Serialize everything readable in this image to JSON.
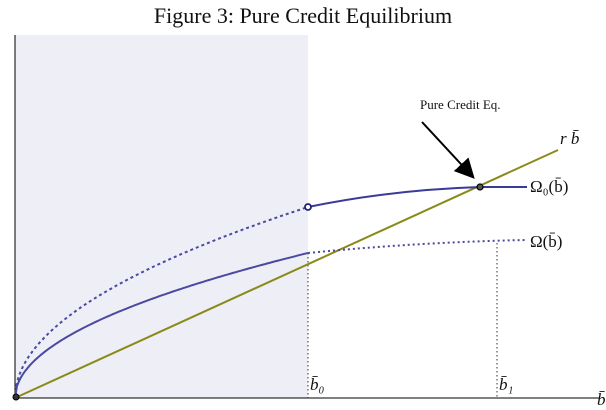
{
  "title": "Figure 3: Pure Credit Equilibrium",
  "annotation": "Pure Credit Eq.",
  "labels": {
    "line": "r b̄",
    "omega0": "Ω₀(b̄)",
    "omega": "Ω(b̄)",
    "b0": "b̄₀",
    "b1": "b̄₁",
    "x_axis": "b̄"
  }
}
